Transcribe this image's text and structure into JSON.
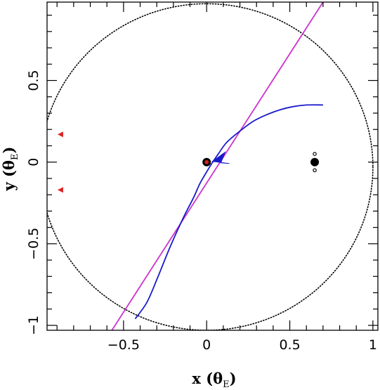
{
  "chart_data": {
    "type": "line",
    "xlabel": "x (θE)",
    "ylabel": "y (θE)",
    "xlim": [
      -0.96,
      1.03
    ],
    "ylim": [
      -1.03,
      0.98
    ],
    "x_ticks": [
      -0.5,
      0,
      0.5,
      1
    ],
    "x_tick_labels": [
      "−0.5",
      "0",
      "0.5",
      "1"
    ],
    "y_ticks": [
      -1,
      -0.5,
      0,
      0.5
    ],
    "y_tick_labels": [
      "−1",
      "−0.5",
      "0",
      "0.5"
    ],
    "grid": false,
    "einstein_ring": {
      "center": [
        0.0,
        -0.03
      ],
      "radius": 1.0,
      "style": "dotted",
      "color": "#000000"
    },
    "straight_trajectory": {
      "color": "#cc33cc",
      "points": [
        [
          -0.57,
          -1.03
        ],
        [
          0.7,
          0.98
        ]
      ]
    },
    "curved_trajectory": {
      "color": "#1a1acc",
      "points": [
        [
          0.7,
          0.35
        ],
        [
          0.6,
          0.35
        ],
        [
          0.52,
          0.34
        ],
        [
          0.44,
          0.32
        ],
        [
          0.36,
          0.29
        ],
        [
          0.28,
          0.25
        ],
        [
          0.2,
          0.19
        ],
        [
          0.12,
          0.12
        ],
        [
          0.07,
          0.05
        ],
        [
          0.03,
          -0.01
        ],
        [
          0.0,
          -0.06
        ],
        [
          -0.04,
          -0.13
        ],
        [
          -0.08,
          -0.22
        ],
        [
          -0.14,
          -0.34
        ],
        [
          -0.22,
          -0.52
        ],
        [
          -0.3,
          -0.72
        ],
        [
          -0.36,
          -0.86
        ],
        [
          -0.43,
          -0.96
        ]
      ],
      "arrow_at": [
        0.06,
        0.0
      ]
    },
    "points": [
      {
        "name": "lens-host",
        "x": 0.0,
        "y": 0.0,
        "color": "#000000",
        "size": "large",
        "inner_color": "#cc2222"
      },
      {
        "name": "lens-companion",
        "x": 0.65,
        "y": 0.0,
        "color": "#000000",
        "size": "large"
      },
      {
        "name": "companion-ring-top",
        "x": 0.65,
        "y": 0.05,
        "color": "#000000",
        "size": "tiny-open"
      },
      {
        "name": "companion-ring-bottom",
        "x": 0.65,
        "y": -0.05,
        "color": "#000000",
        "size": "tiny-open"
      }
    ],
    "caustic_markers": [
      {
        "x": -0.88,
        "y": 0.17,
        "color": "#dd2222"
      },
      {
        "x": -0.88,
        "y": -0.17,
        "color": "#dd2222"
      }
    ]
  }
}
